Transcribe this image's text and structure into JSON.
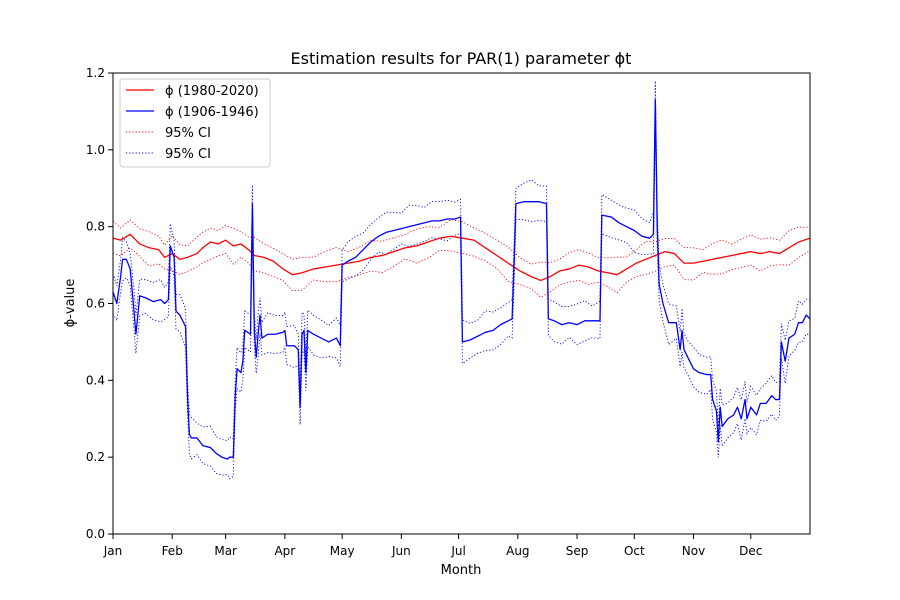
{
  "chart_data": {
    "type": "line",
    "title": "Estimation results for PAR(1) parameter ϕt",
    "xlabel": "Month",
    "ylabel": "ϕ-value",
    "xlim": [
      1,
      366
    ],
    "ylim": [
      0.0,
      1.2
    ],
    "yticks": [
      "0.0",
      "0.2",
      "0.4",
      "0.6",
      "0.8",
      "1.0",
      "1.2"
    ],
    "xticks": [
      {
        "day": 1,
        "label": "Jan"
      },
      {
        "day": 32,
        "label": "Feb"
      },
      {
        "day": 60,
        "label": "Mar"
      },
      {
        "day": 91,
        "label": "Apr"
      },
      {
        "day": 121,
        "label": "May"
      },
      {
        "day": 152,
        "label": "Jun"
      },
      {
        "day": 182,
        "label": "Jul"
      },
      {
        "day": 213,
        "label": "Aug"
      },
      {
        "day": 244,
        "label": "Sep"
      },
      {
        "day": 274,
        "label": "Oct"
      },
      {
        "day": 305,
        "label": "Nov"
      },
      {
        "day": 335,
        "label": "Dec"
      }
    ],
    "grid": false,
    "legend_position": "top-left",
    "colors": {
      "red": "#ff0000",
      "blue": "#0000ff"
    },
    "series": [
      {
        "name": "ϕ (1980-2020)",
        "color": "#ff0000",
        "style": "solid",
        "points": [
          [
            1,
            0.77
          ],
          [
            5,
            0.765
          ],
          [
            10,
            0.78
          ],
          [
            15,
            0.755
          ],
          [
            20,
            0.745
          ],
          [
            25,
            0.74
          ],
          [
            28,
            0.72
          ],
          [
            32,
            0.73
          ],
          [
            36,
            0.715
          ],
          [
            40,
            0.72
          ],
          [
            45,
            0.73
          ],
          [
            48,
            0.745
          ],
          [
            52,
            0.76
          ],
          [
            56,
            0.755
          ],
          [
            60,
            0.765
          ],
          [
            64,
            0.75
          ],
          [
            68,
            0.755
          ],
          [
            72,
            0.74
          ],
          [
            75,
            0.725
          ],
          [
            80,
            0.72
          ],
          [
            85,
            0.71
          ],
          [
            90,
            0.69
          ],
          [
            95,
            0.675
          ],
          [
            100,
            0.68
          ],
          [
            106,
            0.69
          ],
          [
            112,
            0.695
          ],
          [
            118,
            0.7
          ],
          [
            124,
            0.705
          ],
          [
            130,
            0.71
          ],
          [
            136,
            0.72
          ],
          [
            142,
            0.725
          ],
          [
            148,
            0.735
          ],
          [
            154,
            0.745
          ],
          [
            160,
            0.75
          ],
          [
            166,
            0.76
          ],
          [
            172,
            0.77
          ],
          [
            178,
            0.775
          ],
          [
            184,
            0.77
          ],
          [
            190,
            0.765
          ],
          [
            196,
            0.745
          ],
          [
            202,
            0.725
          ],
          [
            208,
            0.705
          ],
          [
            214,
            0.685
          ],
          [
            220,
            0.67
          ],
          [
            225,
            0.66
          ],
          [
            230,
            0.67
          ],
          [
            235,
            0.685
          ],
          [
            240,
            0.69
          ],
          [
            245,
            0.7
          ],
          [
            250,
            0.695
          ],
          [
            255,
            0.685
          ],
          [
            260,
            0.68
          ],
          [
            265,
            0.675
          ],
          [
            270,
            0.69
          ],
          [
            275,
            0.705
          ],
          [
            280,
            0.715
          ],
          [
            285,
            0.725
          ],
          [
            290,
            0.735
          ],
          [
            295,
            0.73
          ],
          [
            300,
            0.705
          ],
          [
            305,
            0.705
          ],
          [
            310,
            0.71
          ],
          [
            315,
            0.715
          ],
          [
            320,
            0.72
          ],
          [
            325,
            0.725
          ],
          [
            330,
            0.73
          ],
          [
            335,
            0.735
          ],
          [
            340,
            0.73
          ],
          [
            345,
            0.735
          ],
          [
            350,
            0.73
          ],
          [
            355,
            0.745
          ],
          [
            360,
            0.76
          ],
          [
            366,
            0.77
          ]
        ]
      },
      {
        "name": "ϕ (1906-1946)",
        "color": "#0000ff",
        "style": "solid",
        "points": [
          [
            1,
            0.63
          ],
          [
            3,
            0.6
          ],
          [
            5,
            0.67
          ],
          [
            6,
            0.715
          ],
          [
            8,
            0.715
          ],
          [
            10,
            0.69
          ],
          [
            12,
            0.58
          ],
          [
            13,
            0.52
          ],
          [
            15,
            0.62
          ],
          [
            18,
            0.615
          ],
          [
            22,
            0.605
          ],
          [
            26,
            0.61
          ],
          [
            28,
            0.6
          ],
          [
            30,
            0.61
          ],
          [
            31,
            0.75
          ],
          [
            33,
            0.72
          ],
          [
            34,
            0.58
          ],
          [
            36,
            0.57
          ],
          [
            38,
            0.55
          ],
          [
            39,
            0.54
          ],
          [
            40,
            0.36
          ],
          [
            41,
            0.26
          ],
          [
            42,
            0.25
          ],
          [
            45,
            0.25
          ],
          [
            48,
            0.23
          ],
          [
            52,
            0.225
          ],
          [
            55,
            0.21
          ],
          [
            58,
            0.2
          ],
          [
            61,
            0.195
          ],
          [
            62,
            0.2
          ],
          [
            64,
            0.2
          ],
          [
            65,
            0.36
          ],
          [
            66,
            0.43
          ],
          [
            68,
            0.42
          ],
          [
            69,
            0.45
          ],
          [
            70,
            0.53
          ],
          [
            73,
            0.52
          ],
          [
            74,
            0.86
          ],
          [
            75,
            0.53
          ],
          [
            76,
            0.46
          ],
          [
            77,
            0.52
          ],
          [
            78,
            0.57
          ],
          [
            79,
            0.51
          ],
          [
            82,
            0.52
          ],
          [
            86,
            0.52
          ],
          [
            90,
            0.525
          ],
          [
            91,
            0.53
          ],
          [
            92,
            0.49
          ],
          [
            96,
            0.49
          ],
          [
            98,
            0.48
          ],
          [
            99,
            0.33
          ],
          [
            100,
            0.52
          ],
          [
            101,
            0.53
          ],
          [
            102,
            0.42
          ],
          [
            103,
            0.53
          ],
          [
            106,
            0.52
          ],
          [
            110,
            0.51
          ],
          [
            114,
            0.5
          ],
          [
            118,
            0.51
          ],
          [
            120,
            0.49
          ],
          [
            121,
            0.7
          ],
          [
            124,
            0.71
          ],
          [
            128,
            0.72
          ],
          [
            132,
            0.74
          ],
          [
            136,
            0.76
          ],
          [
            140,
            0.775
          ],
          [
            144,
            0.785
          ],
          [
            148,
            0.79
          ],
          [
            152,
            0.795
          ],
          [
            156,
            0.8
          ],
          [
            160,
            0.805
          ],
          [
            164,
            0.81
          ],
          [
            168,
            0.815
          ],
          [
            172,
            0.815
          ],
          [
            176,
            0.82
          ],
          [
            180,
            0.82
          ],
          [
            183,
            0.825
          ],
          [
            184,
            0.5
          ],
          [
            188,
            0.505
          ],
          [
            192,
            0.515
          ],
          [
            196,
            0.525
          ],
          [
            200,
            0.53
          ],
          [
            204,
            0.545
          ],
          [
            208,
            0.555
          ],
          [
            210,
            0.56
          ],
          [
            211,
            0.7
          ],
          [
            212,
            0.86
          ],
          [
            216,
            0.865
          ],
          [
            220,
            0.865
          ],
          [
            224,
            0.865
          ],
          [
            228,
            0.86
          ],
          [
            229,
            0.56
          ],
          [
            232,
            0.555
          ],
          [
            236,
            0.545
          ],
          [
            240,
            0.55
          ],
          [
            244,
            0.545
          ],
          [
            248,
            0.555
          ],
          [
            252,
            0.555
          ],
          [
            256,
            0.555
          ],
          [
            257,
            0.83
          ],
          [
            262,
            0.825
          ],
          [
            266,
            0.81
          ],
          [
            270,
            0.8
          ],
          [
            274,
            0.79
          ],
          [
            278,
            0.775
          ],
          [
            282,
            0.77
          ],
          [
            284,
            0.78
          ],
          [
            285,
            1.13
          ],
          [
            286,
            0.8
          ],
          [
            287,
            0.65
          ],
          [
            289,
            0.6
          ],
          [
            292,
            0.55
          ],
          [
            296,
            0.55
          ],
          [
            298,
            0.48
          ],
          [
            299,
            0.53
          ],
          [
            300,
            0.48
          ],
          [
            302,
            0.46
          ],
          [
            305,
            0.43
          ],
          [
            308,
            0.42
          ],
          [
            312,
            0.415
          ],
          [
            314,
            0.415
          ],
          [
            315,
            0.35
          ],
          [
            317,
            0.32
          ],
          [
            318,
            0.24
          ],
          [
            319,
            0.33
          ],
          [
            320,
            0.28
          ],
          [
            323,
            0.3
          ],
          [
            326,
            0.31
          ],
          [
            328,
            0.33
          ],
          [
            330,
            0.3
          ],
          [
            332,
            0.35
          ],
          [
            333,
            0.3
          ],
          [
            335,
            0.33
          ],
          [
            338,
            0.31
          ],
          [
            340,
            0.34
          ],
          [
            343,
            0.34
          ],
          [
            346,
            0.36
          ],
          [
            348,
            0.35
          ],
          [
            350,
            0.35
          ],
          [
            351,
            0.5
          ],
          [
            353,
            0.45
          ],
          [
            355,
            0.51
          ],
          [
            358,
            0.52
          ],
          [
            360,
            0.55
          ],
          [
            362,
            0.55
          ],
          [
            364,
            0.57
          ],
          [
            366,
            0.56
          ]
        ]
      },
      {
        "name": "95% CI",
        "color": "#ff0000",
        "style": "dotted",
        "band_of": 0,
        "halfwidth": 0.038
      },
      {
        "name": "95% CI",
        "color": "#0000ff",
        "style": "dotted",
        "band_of": 1,
        "halfwidth": 0.048
      }
    ]
  }
}
